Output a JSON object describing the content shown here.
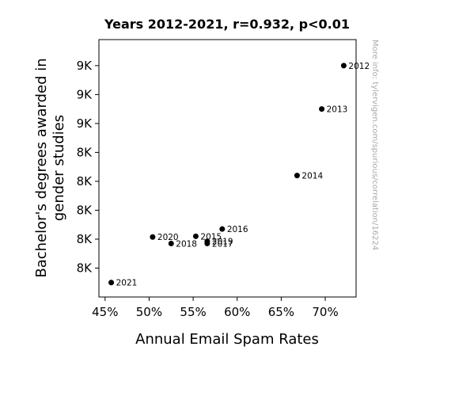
{
  "chart_data": {
    "type": "scatter",
    "title": "Years 2012-2021, r=0.932, p<0.01",
    "xlabel": "Annual Email Spam Rates",
    "ylabel_lines": [
      "Bachelor's degrees awarded in",
      "gender studies"
    ],
    "xlim": [
      0.443,
      0.735
    ],
    "ylim": [
      7400,
      9180
    ],
    "x_ticks": [
      {
        "value": 0.45,
        "label": "45%"
      },
      {
        "value": 0.5,
        "label": "50%"
      },
      {
        "value": 0.55,
        "label": "55%"
      },
      {
        "value": 0.6,
        "label": "60%"
      },
      {
        "value": 0.65,
        "label": "65%"
      },
      {
        "value": 0.7,
        "label": "70%"
      }
    ],
    "y_ticks": [
      {
        "value": 7600,
        "label": "8K"
      },
      {
        "value": 7800,
        "label": "8K"
      },
      {
        "value": 8000,
        "label": "8K"
      },
      {
        "value": 8200,
        "label": "8K"
      },
      {
        "value": 8400,
        "label": "8K"
      },
      {
        "value": 8600,
        "label": "9K"
      },
      {
        "value": 8800,
        "label": "9K"
      },
      {
        "value": 9000,
        "label": "9K"
      }
    ],
    "points": [
      {
        "x": 0.721,
        "y": 9000,
        "label": "2012"
      },
      {
        "x": 0.696,
        "y": 8700,
        "label": "2013"
      },
      {
        "x": 0.668,
        "y": 8240,
        "label": "2014"
      },
      {
        "x": 0.553,
        "y": 7820,
        "label": "2015"
      },
      {
        "x": 0.583,
        "y": 7870,
        "label": "2016"
      },
      {
        "x": 0.566,
        "y": 7770,
        "label": "2017"
      },
      {
        "x": 0.525,
        "y": 7770,
        "label": "2018"
      },
      {
        "x": 0.566,
        "y": 7785,
        "label": "2019"
      },
      {
        "x": 0.504,
        "y": 7815,
        "label": "2020"
      },
      {
        "x": 0.457,
        "y": 7500,
        "label": "2021"
      }
    ],
    "grid": false,
    "marker_color": "#000000",
    "watermark": "More info: tylervigen.com/spurious/correlation/16224"
  }
}
